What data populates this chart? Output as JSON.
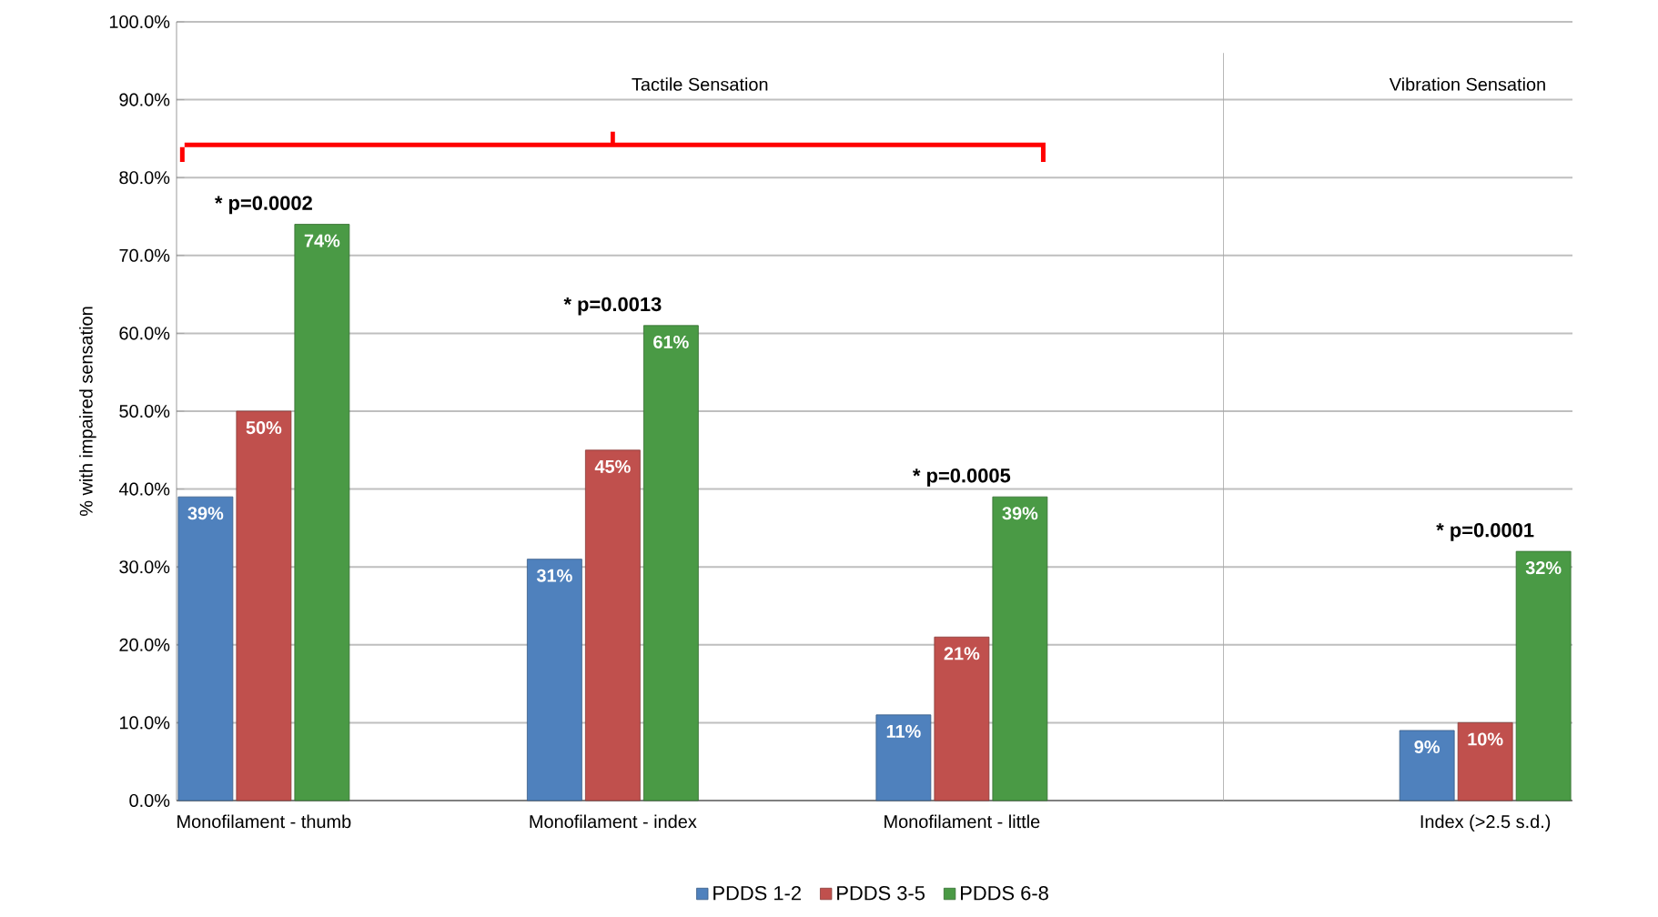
{
  "chart_data": {
    "type": "bar",
    "ylabel": "% with impaired sensation",
    "categories": [
      "Monofilament - thumb",
      null,
      "Monofilament - index",
      null,
      "Monofilament - little",
      null,
      null,
      "Index (>2.5 s.d.)"
    ],
    "series": [
      {
        "name": "PDDS 1-2",
        "color": "#4f81bd",
        "values": [
          39,
          null,
          31,
          null,
          11,
          null,
          null,
          9
        ],
        "value_labels": [
          "39%",
          null,
          "31%",
          null,
          "11%",
          null,
          null,
          "9%"
        ]
      },
      {
        "name": "PDDS 3-5",
        "color": "#c0504d",
        "values": [
          50,
          null,
          45,
          null,
          21,
          null,
          null,
          10
        ],
        "value_labels": [
          "50%",
          null,
          "45%",
          null,
          "21%",
          null,
          null,
          "10%"
        ]
      },
      {
        "name": "PDDS 6-8",
        "color": "#4a9a45",
        "values": [
          74,
          null,
          61,
          null,
          39,
          null,
          null,
          32
        ],
        "value_labels": [
          "74%",
          null,
          "61%",
          null,
          "39%",
          null,
          null,
          "32%"
        ]
      }
    ],
    "ylim": [
      0,
      100
    ],
    "yticks": [
      {
        "value": 0,
        "label": "0.0%"
      },
      {
        "value": 10,
        "label": "10.0%"
      },
      {
        "value": 20,
        "label": "20.0%"
      },
      {
        "value": 30,
        "label": "30.0%"
      },
      {
        "value": 40,
        "label": "40.0%"
      },
      {
        "value": 50,
        "label": "50.0%"
      },
      {
        "value": 60,
        "label": "60.0%"
      },
      {
        "value": 70,
        "label": "70.0%"
      },
      {
        "value": 80,
        "label": "80.0%"
      },
      {
        "value": 90,
        "label": "90.0%"
      },
      {
        "value": 100,
        "label": "100.0%"
      }
    ],
    "grid": "y",
    "legend": "bottom",
    "annotations": [
      "Tactile Sensation",
      "Vibration Sensation",
      "* p=0.0002",
      "* p=0.0013",
      "* p=0.0005",
      "* p=0.0001"
    ]
  }
}
